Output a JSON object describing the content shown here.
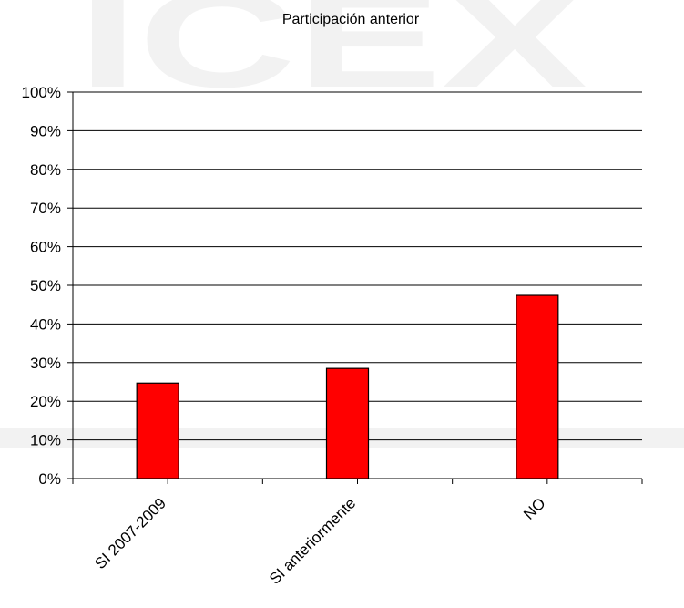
{
  "watermark": {
    "text": "ICEX",
    "color": "#f2f2f2"
  },
  "chart_data": {
    "type": "bar",
    "title": "Participación anterior",
    "categories": [
      "SI 2007-2009",
      "SI anteriormente",
      "NO"
    ],
    "values": [
      0.247,
      0.285,
      0.474
    ],
    "yticks": [
      "0%",
      "10%",
      "20%",
      "30%",
      "40%",
      "50%",
      "60%",
      "70%",
      "80%",
      "90%",
      "100%"
    ],
    "ylim": [
      0,
      1
    ],
    "grid": true,
    "legend": "none",
    "bar_color": "#ff0000",
    "xlabel": "",
    "ylabel": ""
  }
}
